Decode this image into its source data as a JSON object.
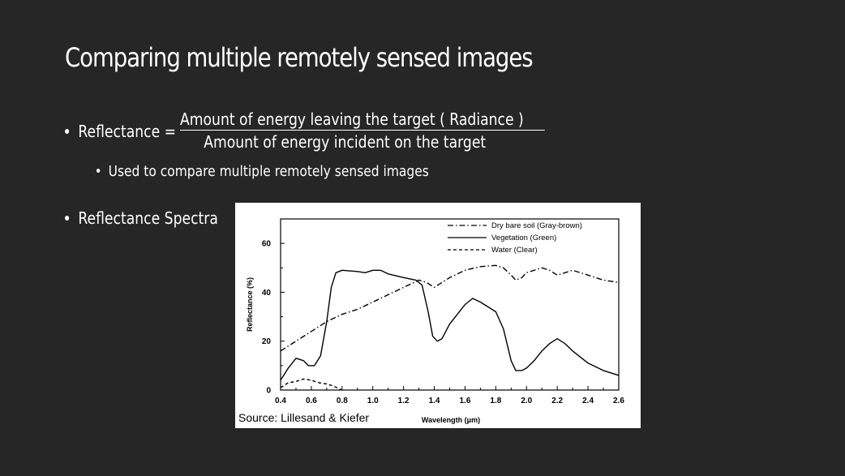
{
  "slide": {
    "title": "Comparing multiple remotely sensed images",
    "bullets": {
      "reflectance_label": "Reflectance =",
      "numerator": "Amount of energy leaving the target ( Radiance )",
      "denominator": "Amount of energy incident on the target",
      "sub_bullet": "Used to compare multiple remotely sensed images",
      "spectra_label": "Reflectance Spectra"
    },
    "figure_source": "Source: Lillesand & Kiefer"
  },
  "chart_data": {
    "type": "line",
    "xlabel": "Wavelength (μm)",
    "ylabel": "Reflectance (%)",
    "xlim": [
      0.4,
      2.6
    ],
    "ylim": [
      0,
      70
    ],
    "xticks": [
      "0.4",
      "0.6",
      "0.8",
      "1.0",
      "1.2",
      "1.4",
      "1.6",
      "1.8",
      "2.0",
      "2.2",
      "2.4",
      "2.6"
    ],
    "yticks": [
      "0",
      "20",
      "40",
      "60"
    ],
    "legend_position": "top-right",
    "series": [
      {
        "name": "Dry bare soil (Gray-brown)",
        "style": "dash-dot",
        "points": [
          [
            0.4,
            16
          ],
          [
            0.5,
            20
          ],
          [
            0.6,
            24
          ],
          [
            0.7,
            28
          ],
          [
            0.8,
            31
          ],
          [
            0.9,
            33
          ],
          [
            1.0,
            36
          ],
          [
            1.1,
            39
          ],
          [
            1.2,
            42
          ],
          [
            1.3,
            45
          ],
          [
            1.35,
            44
          ],
          [
            1.4,
            42
          ],
          [
            1.5,
            46
          ],
          [
            1.6,
            49
          ],
          [
            1.7,
            50.5
          ],
          [
            1.8,
            51
          ],
          [
            1.85,
            50
          ],
          [
            1.9,
            47
          ],
          [
            1.93,
            45
          ],
          [
            1.97,
            46
          ],
          [
            2.0,
            48
          ],
          [
            2.1,
            50
          ],
          [
            2.15,
            49
          ],
          [
            2.2,
            47
          ],
          [
            2.25,
            48
          ],
          [
            2.3,
            49
          ],
          [
            2.4,
            47
          ],
          [
            2.5,
            45
          ],
          [
            2.6,
            44
          ]
        ]
      },
      {
        "name": "Vegetation (Green)",
        "style": "solid",
        "points": [
          [
            0.4,
            4
          ],
          [
            0.45,
            9
          ],
          [
            0.5,
            13
          ],
          [
            0.55,
            12
          ],
          [
            0.58,
            10
          ],
          [
            0.62,
            10
          ],
          [
            0.66,
            14
          ],
          [
            0.7,
            28
          ],
          [
            0.73,
            42
          ],
          [
            0.76,
            48
          ],
          [
            0.8,
            49
          ],
          [
            0.9,
            48.5
          ],
          [
            0.95,
            48
          ],
          [
            1.0,
            49
          ],
          [
            1.05,
            49
          ],
          [
            1.1,
            47.5
          ],
          [
            1.2,
            46
          ],
          [
            1.28,
            45
          ],
          [
            1.32,
            43
          ],
          [
            1.36,
            32
          ],
          [
            1.39,
            22
          ],
          [
            1.42,
            20
          ],
          [
            1.45,
            21
          ],
          [
            1.5,
            27
          ],
          [
            1.6,
            35
          ],
          [
            1.65,
            37.5
          ],
          [
            1.7,
            36
          ],
          [
            1.75,
            34
          ],
          [
            1.8,
            32
          ],
          [
            1.85,
            25
          ],
          [
            1.9,
            12
          ],
          [
            1.93,
            8
          ],
          [
            1.97,
            8
          ],
          [
            2.0,
            9
          ],
          [
            2.05,
            12
          ],
          [
            2.1,
            16
          ],
          [
            2.15,
            19
          ],
          [
            2.2,
            21
          ],
          [
            2.25,
            19
          ],
          [
            2.3,
            16
          ],
          [
            2.4,
            11
          ],
          [
            2.5,
            8
          ],
          [
            2.6,
            6
          ]
        ]
      },
      {
        "name": "Water (Clear)",
        "style": "dashed",
        "points": [
          [
            0.4,
            1
          ],
          [
            0.45,
            3
          ],
          [
            0.5,
            3.5
          ],
          [
            0.55,
            4.5
          ],
          [
            0.6,
            4
          ],
          [
            0.65,
            3
          ],
          [
            0.7,
            2.5
          ],
          [
            0.75,
            1.5
          ],
          [
            0.78,
            0.5
          ],
          [
            0.8,
            0
          ]
        ]
      }
    ]
  }
}
